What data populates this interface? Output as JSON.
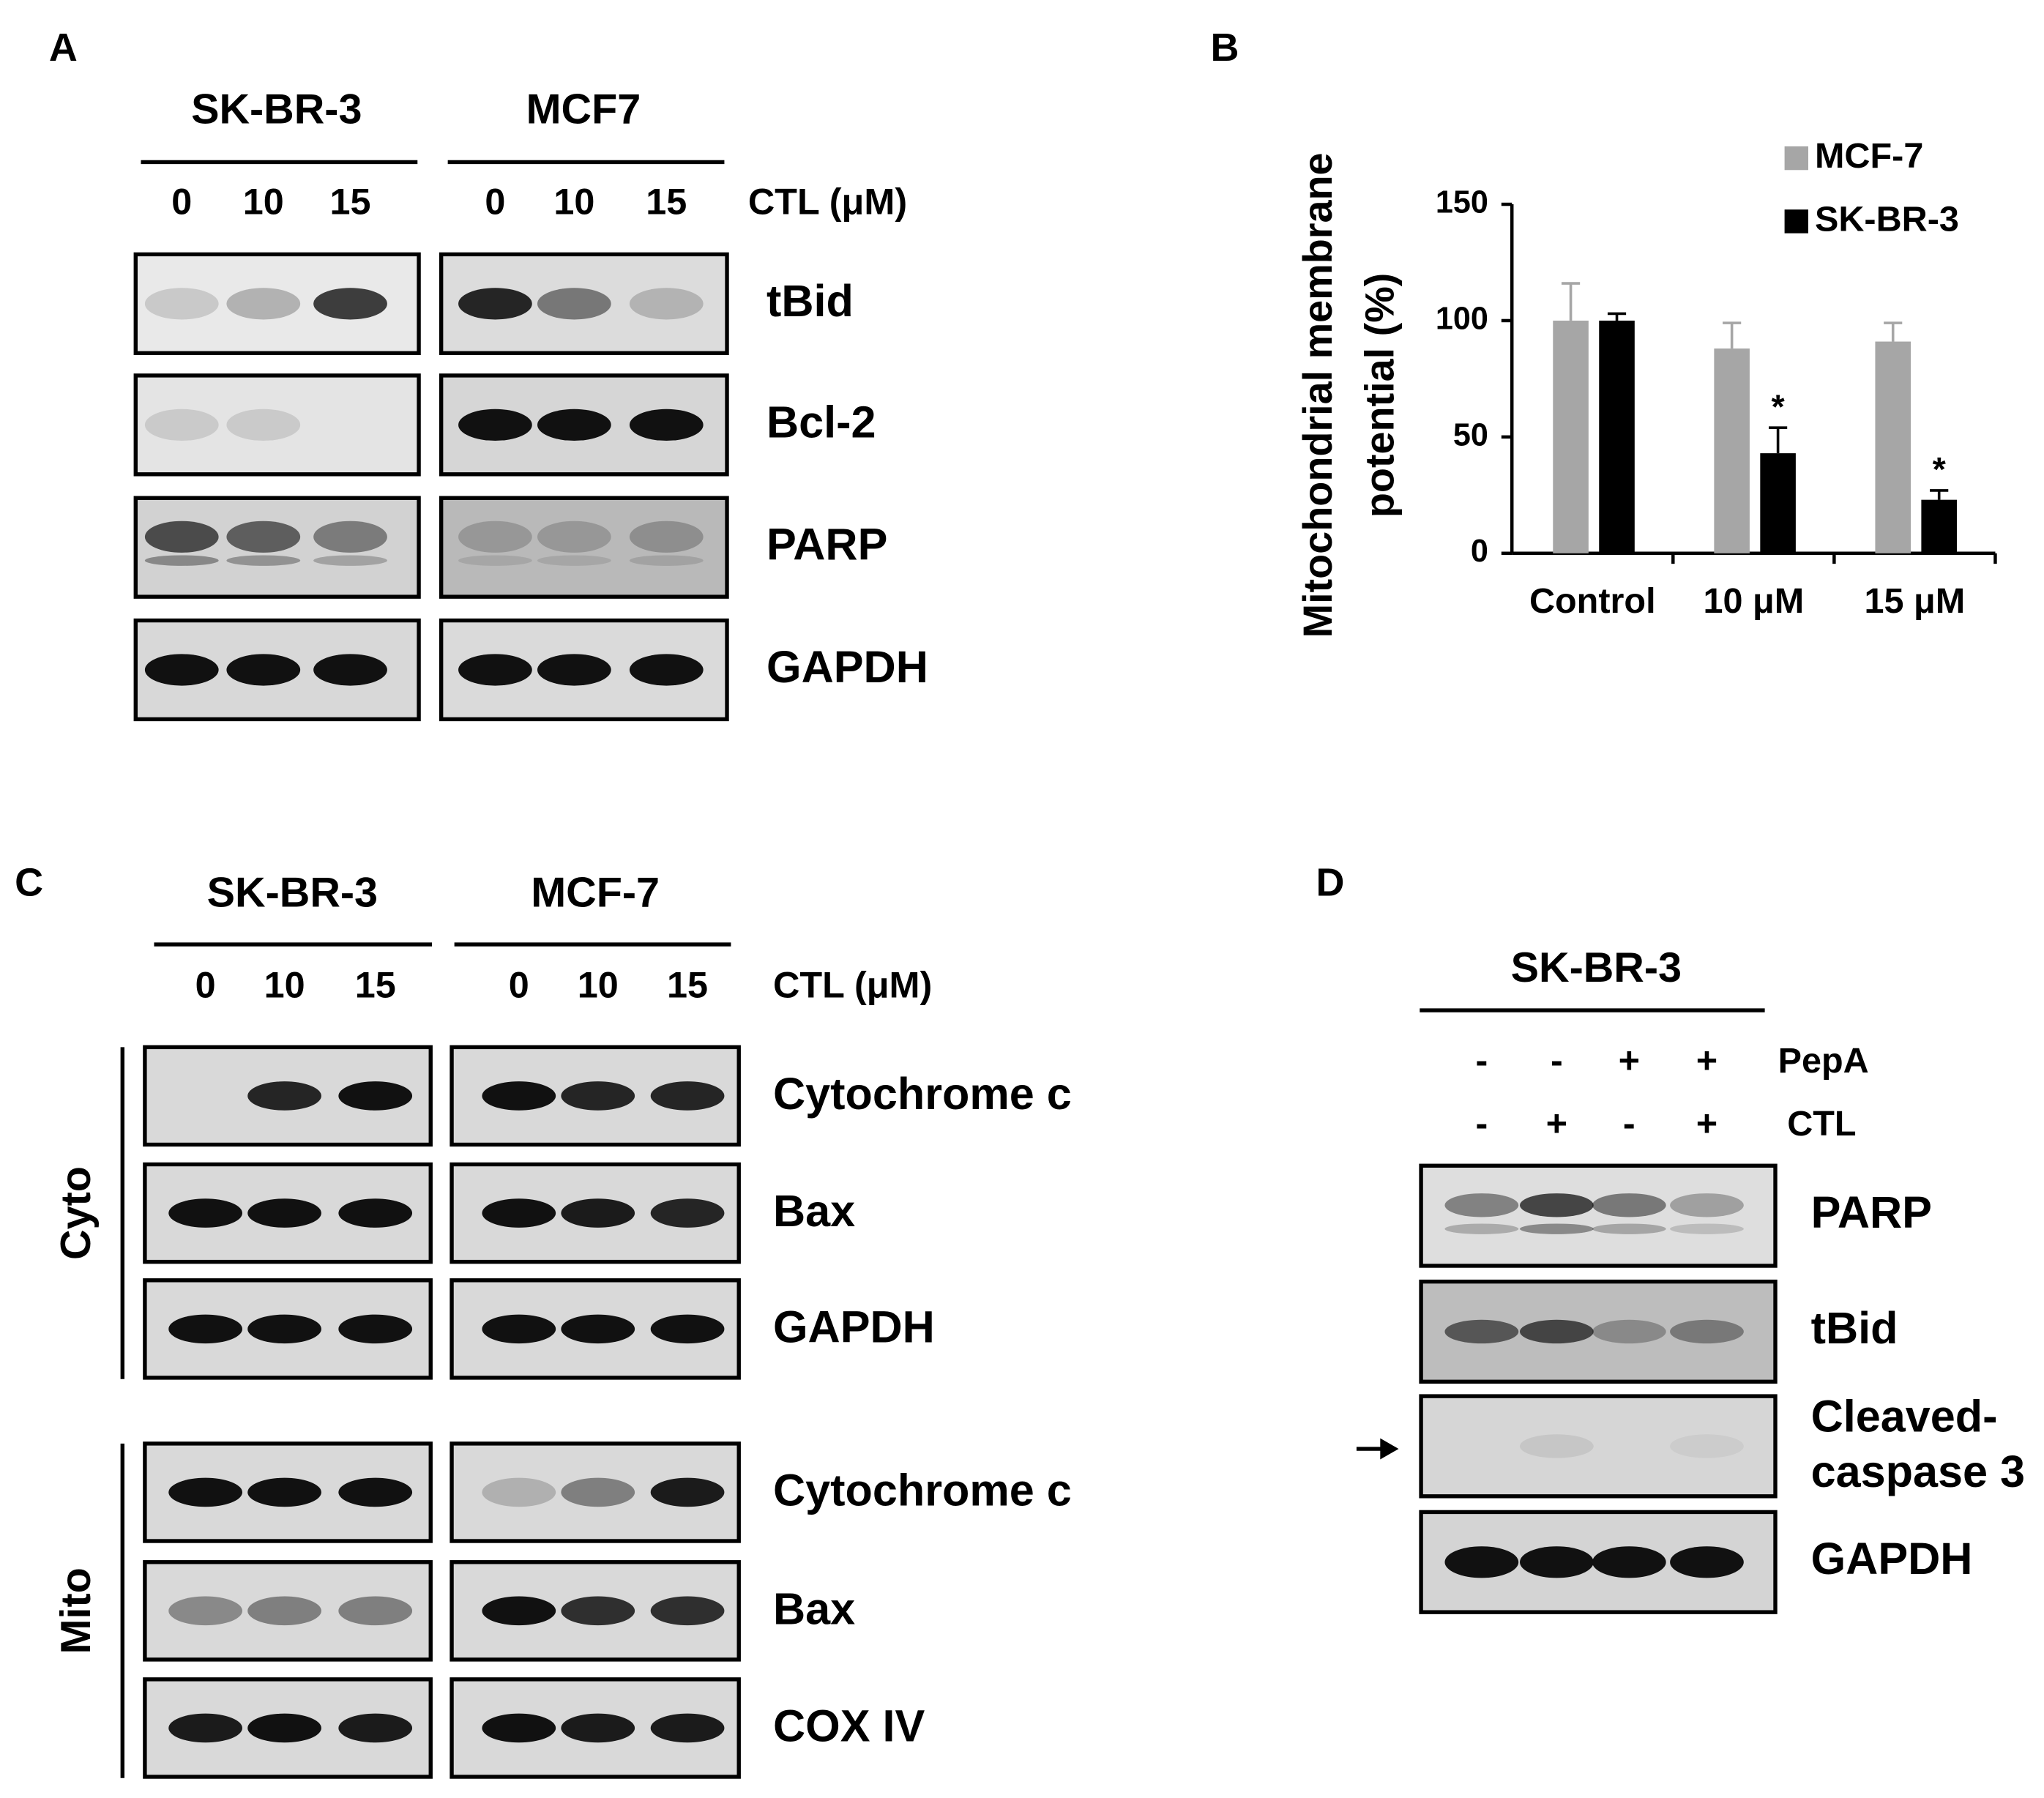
{
  "panel_a": {
    "label": "A",
    "cell_lines": [
      "SK-BR-3",
      "MCF7"
    ],
    "doses": [
      "0",
      "10",
      "15"
    ],
    "treatment": "CTL (μM)",
    "proteins": [
      "tBid",
      "Bcl-2",
      "PARP",
      "GAPDH"
    ]
  },
  "chart_data": {
    "type": "bar",
    "panel_label": "B",
    "y_label": [
      "Mitochondrial membrane",
      "potential (%)"
    ],
    "categories": [
      "Control",
      "10 μM",
      "15 μM"
    ],
    "series": [
      {
        "name": "MCF-7",
        "color": "#a6a6a6",
        "values": [
          100,
          88,
          91
        ],
        "errors": [
          16,
          11,
          8
        ]
      },
      {
        "name": "SK-BR-3",
        "color": "#000000",
        "values": [
          100,
          43,
          23
        ],
        "errors": [
          3,
          11,
          4
        ]
      }
    ],
    "ylim": [
      0,
      150
    ],
    "yticks": [
      0,
      50,
      100,
      150
    ],
    "annotations": [
      {
        "text": "*",
        "category": "10 μM",
        "series": "SK-BR-3"
      },
      {
        "text": "*",
        "category": "15 μM",
        "series": "SK-BR-3"
      }
    ],
    "legend": "top-right"
  },
  "panel_c": {
    "label": "C",
    "cell_lines": [
      "SK-BR-3",
      "MCF-7"
    ],
    "doses": [
      "0",
      "10",
      "15"
    ],
    "treatment": "CTL (μM)",
    "fractions": [
      {
        "name": "Cyto",
        "proteins": [
          "Cytochrome c",
          "Bax",
          "GAPDH"
        ]
      },
      {
        "name": "Mito",
        "proteins": [
          "Cytochrome c",
          "Bax",
          "COX IV"
        ]
      }
    ]
  },
  "panel_d": {
    "label": "D",
    "cell_line": "SK-BR-3",
    "treatments": [
      {
        "name": "PepA",
        "signs": [
          "-",
          "-",
          "+",
          "+"
        ]
      },
      {
        "name": "CTL",
        "signs": [
          "-",
          "+",
          "-",
          "+"
        ]
      }
    ],
    "proteins": [
      "PARP",
      "tBid",
      [
        "Cleaved-",
        "caspase 3"
      ],
      "GAPDH"
    ]
  }
}
